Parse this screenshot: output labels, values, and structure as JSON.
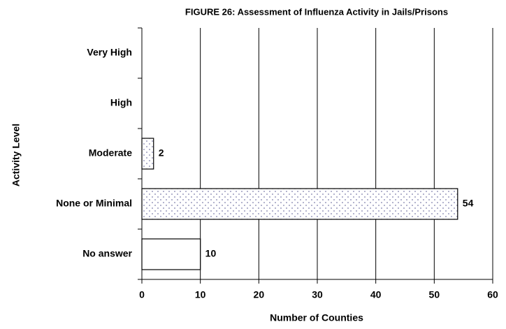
{
  "chart_data": {
    "type": "hbar",
    "title": "FIGURE 26: Assessment of Influenza Activity in Jails/Prisons",
    "x_label": "Number of Counties",
    "y_label": "Activity Level",
    "categories": [
      "Very High",
      "High",
      "Moderate",
      "None or Minimal",
      "No answer"
    ],
    "values": [
      0,
      0,
      2,
      54,
      10
    ],
    "patterns": [
      "dots",
      "dots",
      "dots",
      "dots",
      "none"
    ],
    "color": "#000000",
    "xlim": [
      0,
      60
    ],
    "xticks": [
      0,
      10,
      20,
      30,
      40,
      50,
      60
    ],
    "grid": true
  }
}
